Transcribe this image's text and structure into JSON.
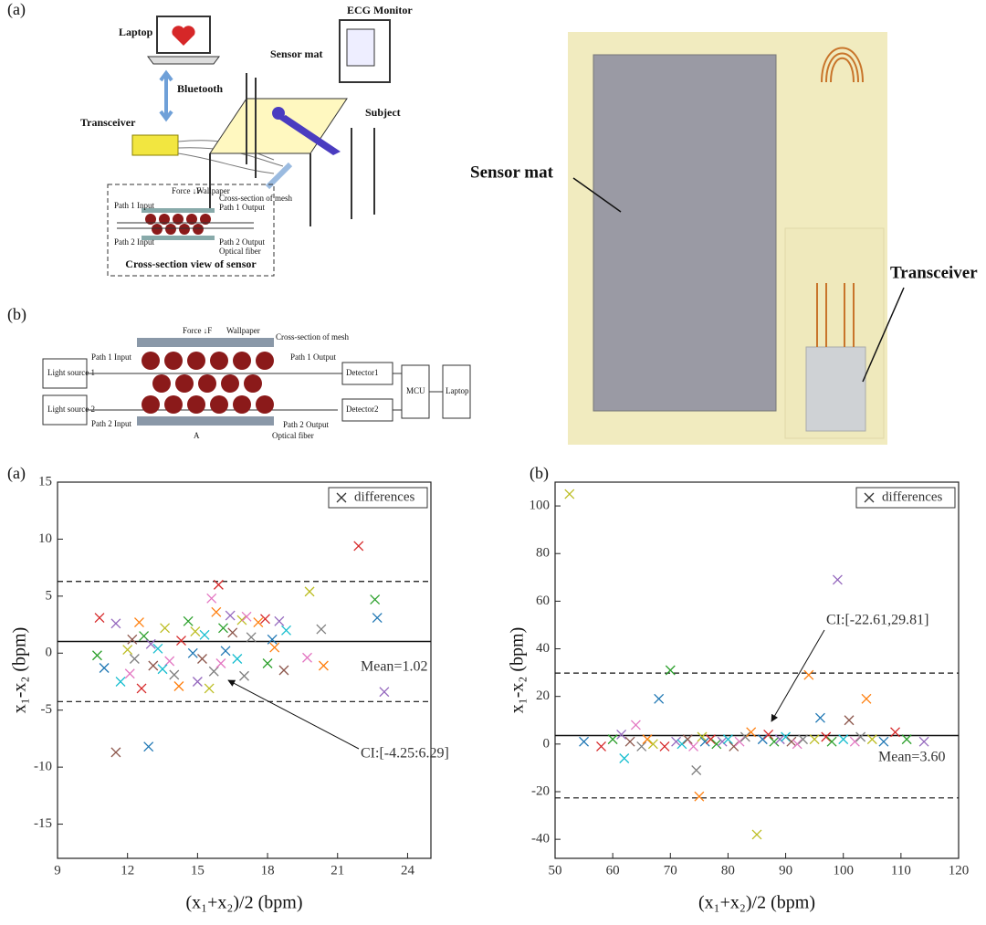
{
  "diagram_a": {
    "panel": "(a)",
    "laptop": "Laptop",
    "bluetooth": "Bluetooth",
    "transceiver": "Transceiver",
    "ecg": "ECG Monitor",
    "sensor_mat": "Sensor mat",
    "subject": "Subject",
    "caption": "Cross-section view of sensor",
    "inset": [
      "Force ↓F",
      "Wallpaper",
      "Cross-section of mesh",
      "Path 1 Input",
      "Path 1 Output",
      "Path 2 Input",
      "Path 2 Output",
      "Optical fiber"
    ]
  },
  "diagram_b": {
    "panel": "(b)",
    "source1": "Light source 1",
    "source2": "Light source 2",
    "path1_in": "Path 1 Input",
    "path2_in": "Path 2 Input",
    "force": "Force ↓F",
    "wallpaper": "Wallpaper",
    "mesh": "Cross-section of mesh",
    "path1_out": "Path 1 Output",
    "path2_out": "Path 2 Output",
    "fiber": "Optical fiber",
    "detector1": "Detector1",
    "detector2": "Detector2",
    "mcu": "MCU",
    "laptop": "Laptop",
    "gap": "A"
  },
  "photo": {
    "sensor_mat": "Sensor mat",
    "transceiver": "Transceiver"
  },
  "chart_data": [
    {
      "type": "scatter",
      "panel": "(a)",
      "x_label": "(x₁+x₂)/2 (bpm)",
      "y_label": "x₁-x₂ (bpm)",
      "xlim": [
        9,
        25
      ],
      "ylim": [
        -18,
        15
      ],
      "xticks": [
        9,
        12,
        15,
        18,
        21,
        24
      ],
      "yticks": [
        15,
        10,
        5,
        0,
        -5,
        -10,
        -15
      ],
      "mean": 1.02,
      "ci": [
        -4.25,
        6.29
      ],
      "mean_label": "Mean=1.02",
      "ci_label": "CI:[-4.25:6.29]",
      "legend": "upper right",
      "series": [
        {
          "name": "differences",
          "color": "#333333",
          "point_colors": [
            "#d62728",
            "#2ca02c",
            "#1f77b4",
            "#9467bd",
            "#8c564b",
            "#17becf",
            "#bcbd22",
            "#e377c2",
            "#7f7f7f",
            "#ff7f0e"
          ],
          "x": [
            10.8,
            10.7,
            11,
            11.5,
            11.5,
            11.7,
            12,
            12.1,
            12.3,
            12.5,
            12.6,
            12.7,
            12.9,
            13,
            13.1,
            13.3,
            13.6,
            13.8,
            14,
            14.2,
            14.3,
            14.6,
            14.8,
            15,
            15.2,
            15.3,
            15.5,
            15.6,
            15.7,
            15.8,
            15.9,
            16.1,
            16.2,
            16.4,
            16.5,
            16.7,
            16.9,
            17.1,
            17.3,
            17.6,
            17.9,
            18,
            18.2,
            18.5,
            18.7,
            18.8,
            19.8,
            19.7,
            20.3,
            20.4,
            21.9,
            22.6,
            22.7,
            23,
            12.2,
            13.5,
            14.9,
            16,
            17,
            18.3
          ],
          "values": [
            3.1,
            -0.2,
            -1.3,
            2.6,
            -8.7,
            -2.5,
            0.3,
            -1.8,
            -0.5,
            2.7,
            -3.1,
            1.5,
            -8.2,
            0.8,
            -1.1,
            0.4,
            2.2,
            -0.7,
            -1.9,
            -2.9,
            1.1,
            2.8,
            0,
            -2.5,
            -0.5,
            1.6,
            -3.1,
            4.8,
            -1.6,
            3.6,
            6,
            2.2,
            0.2,
            3.3,
            1.8,
            -0.5,
            2.9,
            3.2,
            1.4,
            2.7,
            3,
            -0.9,
            1.2,
            2.8,
            -1.5,
            2,
            5.4,
            -0.4,
            2.1,
            -1.1,
            9.4,
            4.7,
            3.1,
            -3.4,
            1.2,
            -1.4,
            1.9,
            -0.9,
            -2,
            0.5
          ]
        }
      ]
    },
    {
      "type": "scatter",
      "panel": "(b)",
      "x_label": "(x₁+x₂)/2 (bpm)",
      "y_label": "x₁-x₂ (bpm)",
      "xlim": [
        50,
        120
      ],
      "ylim": [
        -48,
        110
      ],
      "xticks": [
        50,
        60,
        70,
        80,
        90,
        100,
        110,
        120
      ],
      "yticks": [
        100,
        80,
        60,
        40,
        20,
        0,
        -20,
        -40
      ],
      "mean": 3.6,
      "ci": [
        -22.61,
        29.81
      ],
      "mean_label": "Mean=3.60",
      "ci_label": "CI:[-22.61,29.81]",
      "legend": "upper right",
      "series": [
        {
          "name": "differences",
          "color": "#333333",
          "point_colors": [
            "#bcbd22",
            "#1f77b4",
            "#d62728",
            "#2ca02c",
            "#9467bd",
            "#17becf",
            "#8c564b",
            "#e377c2",
            "#7f7f7f",
            "#ff7f0e"
          ],
          "x": [
            52.5,
            55,
            58,
            60,
            61.5,
            62,
            63,
            64,
            65,
            66,
            67,
            68,
            69,
            70,
            71,
            72,
            73,
            74,
            74.5,
            75,
            75.5,
            76,
            77,
            78,
            79,
            80,
            81,
            82,
            83,
            84,
            85,
            86,
            87,
            88,
            89,
            90,
            91,
            92,
            93,
            94,
            95,
            96,
            97,
            98,
            99,
            100,
            101,
            102,
            103,
            104,
            105,
            107,
            109,
            111,
            114
          ],
          "values": [
            105,
            1,
            -1,
            2,
            4,
            -6,
            1,
            8,
            -1,
            2,
            0,
            19,
            -1,
            31,
            1,
            0,
            2,
            -1,
            -11,
            -22,
            3,
            1,
            2,
            0,
            1,
            2,
            -1,
            1,
            3,
            5,
            -38,
            2,
            4,
            1,
            2,
            3,
            1,
            0,
            2,
            29,
            2,
            11,
            3,
            1,
            69,
            2,
            10,
            1,
            3,
            19,
            2,
            1,
            5,
            2,
            1
          ]
        }
      ]
    }
  ]
}
